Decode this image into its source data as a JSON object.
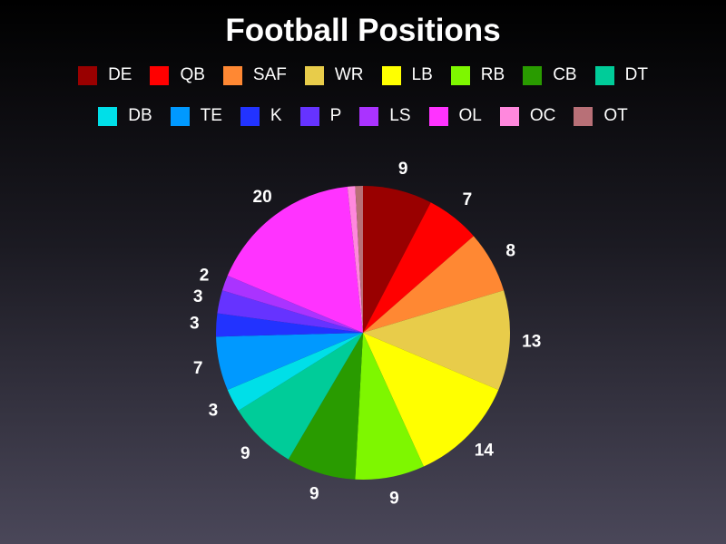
{
  "chart_data": {
    "type": "pie",
    "title": "Football Positions",
    "legend_position": "top",
    "slices": [
      {
        "label": "DE",
        "value": 9,
        "color": "#990000"
      },
      {
        "label": "QB",
        "value": 7,
        "color": "#ff0000"
      },
      {
        "label": "SAF",
        "value": 8,
        "color": "#ff8833"
      },
      {
        "label": "WR",
        "value": 13,
        "color": "#e8cc4a"
      },
      {
        "label": "LB",
        "value": 14,
        "color": "#ffff00"
      },
      {
        "label": "RB",
        "value": 9,
        "color": "#7ef700"
      },
      {
        "label": "CB",
        "value": 9,
        "color": "#299b00"
      },
      {
        "label": "DT",
        "value": 9,
        "color": "#00cc99"
      },
      {
        "label": "DB",
        "value": 3,
        "color": "#00dfe8"
      },
      {
        "label": "TE",
        "value": 7,
        "color": "#0099ff"
      },
      {
        "label": "K",
        "value": 3,
        "color": "#2233ff"
      },
      {
        "label": "P",
        "value": 3,
        "color": "#6633ff"
      },
      {
        "label": "LS",
        "value": 2,
        "color": "#aa33ff"
      },
      {
        "label": "OL",
        "value": 20,
        "color": "#ff33ff"
      },
      {
        "label": "OC",
        "value": 1,
        "color": "#ff88dd"
      },
      {
        "label": "OT",
        "value": 1,
        "color": "#b87077"
      }
    ],
    "data_labels": [
      "9",
      "7",
      "8",
      "13",
      "14",
      "9",
      "9",
      "9",
      "3",
      "7",
      "3",
      "3",
      "2",
      "20",
      "",
      ""
    ]
  }
}
